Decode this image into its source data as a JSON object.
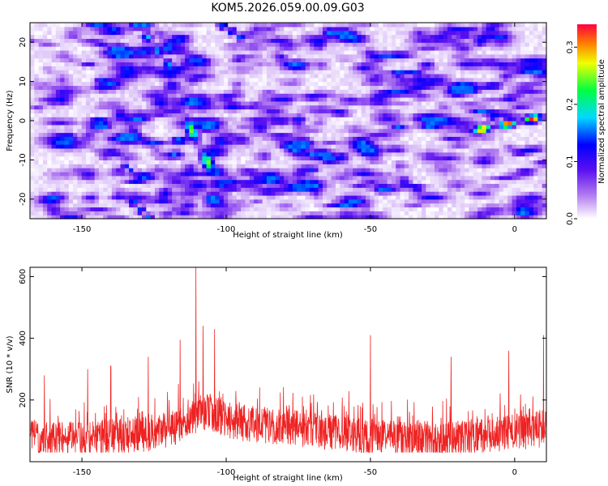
{
  "figure": {
    "title": "KOM5.2026.059.00.09.G03"
  },
  "chart_data": [
    {
      "type": "heatmap",
      "xlabel": "Height of straight line (km)",
      "ylabel": "Frequency (Hz)",
      "xlim": [
        -168,
        11
      ],
      "ylim": [
        -25,
        25
      ],
      "xticks": [
        -150,
        -100,
        -50,
        0
      ],
      "yticks": [
        -20,
        -10,
        0,
        10,
        20
      ],
      "colorbar": {
        "label": "Normalized spectral amplitude",
        "range": [
          0.0,
          0.34
        ],
        "ticks": [
          0.0,
          0.1,
          0.2,
          0.3
        ],
        "colormap": [
          "#ffffff",
          "#8a2be2",
          "#0000ff",
          "#00ffff",
          "#00ff00",
          "#ffff00",
          "#ff0000"
        ]
      },
      "features": [
        {
          "description": "strongest ridge near zero height",
          "x": [
            -15,
            8
          ],
          "y": [
            -3,
            0.5
          ],
          "peak": 0.34
        },
        {
          "description": "ridge near -115 to -100 km",
          "x": [
            -116,
            -103
          ],
          "y": [
            2,
            -17
          ],
          "peak": 0.25
        },
        {
          "description": "streak near -128 to -120 km",
          "x": [
            -128,
            -120
          ],
          "y": [
            21,
            13
          ],
          "peak": 0.18
        },
        {
          "description": "streak near -100 km at top",
          "x": [
            -102,
            -96
          ],
          "y": [
            24,
            21
          ],
          "peak": 0.17
        },
        {
          "description": "blob near -130 km bottom",
          "x": [
            -133,
            -128
          ],
          "y": [
            -21,
            -25
          ],
          "peak": 0.16
        },
        {
          "description": "blob near -135 km",
          "x": [
            -136,
            -132
          ],
          "y": [
            -12,
            -14
          ],
          "peak": 0.15
        }
      ]
    },
    {
      "type": "line",
      "xlabel": "Height of straight line (km)",
      "ylabel": "SNR (10 * v/v)",
      "xlim": [
        -168,
        11
      ],
      "ylim": [
        0,
        630
      ],
      "xticks": [
        -150,
        -100,
        -50,
        0
      ],
      "yticks": [
        200,
        400,
        600
      ],
      "color": "#ee2222",
      "series_summary": {
        "x_range": [
          -168,
          11
        ],
        "typical_range": [
          60,
          240
        ],
        "peak": {
          "x": -110.5,
          "y": 630
        },
        "notable_spikes": [
          {
            "x": -163,
            "y": 280
          },
          {
            "x": -148,
            "y": 300
          },
          {
            "x": -140,
            "y": 310
          },
          {
            "x": -127,
            "y": 340
          },
          {
            "x": -116,
            "y": 395
          },
          {
            "x": -108,
            "y": 440
          },
          {
            "x": -104,
            "y": 430
          },
          {
            "x": -50,
            "y": 410
          },
          {
            "x": -22,
            "y": 340
          },
          {
            "x": -2,
            "y": 360
          },
          {
            "x": 10,
            "y": 410
          }
        ]
      }
    }
  ]
}
